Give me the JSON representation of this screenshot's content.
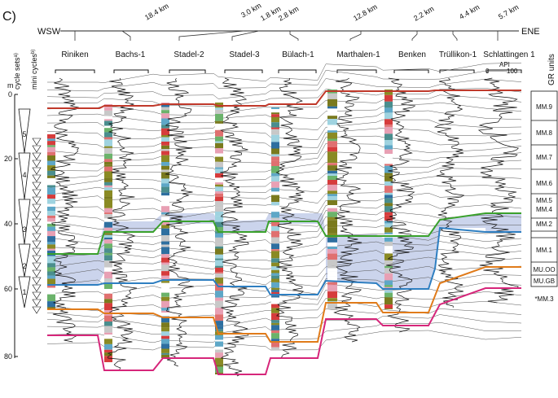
{
  "panel_label": "C)",
  "direction": {
    "west": "WSW",
    "east": "ENE"
  },
  "distances": [
    "18.4 km",
    "3.0 km",
    "1.8 km",
    "2.8 km",
    "12.8 km",
    "2.2 km",
    "4.4 km",
    "5.7 km"
  ],
  "wells": [
    "Riniken",
    "Bachs-1",
    "Stadel-2",
    "Stadel-3",
    "Bülach-1",
    "Marthalen-1",
    "Benken",
    "Trüllikon-1",
    "Schlattingen 1"
  ],
  "api_label": "API",
  "api_ticks": [
    "0",
    "100"
  ],
  "depth_unit": "m",
  "depth_ticks": [
    "0",
    "20",
    "40",
    "60",
    "80"
  ],
  "cycle_headers": {
    "cycle_sets": "cycle sets",
    "mini_cycles": "mini cycles",
    "sup_a": "a)",
    "sup_b": "b)"
  },
  "cycle_set_numbers": [
    "5",
    "4",
    "3",
    "2",
    "1"
  ],
  "gr_units_title": "GR units",
  "gr_units": [
    "MM.9",
    "MM.8",
    "MM.7",
    "MM.6",
    "MM.5",
    "MM.4",
    "MM.2",
    "MM.1",
    "MU.OO",
    "MU.GB",
    "*MM.3"
  ],
  "colors": {
    "red_horizon": "#c0392b",
    "green_horizon": "#3aa12c",
    "blue_horizon": "#2f7fc1",
    "orange_horizon": "#e07b1a",
    "magenta_horizon": "#d6267a",
    "shade": "#b8c4e3"
  }
}
